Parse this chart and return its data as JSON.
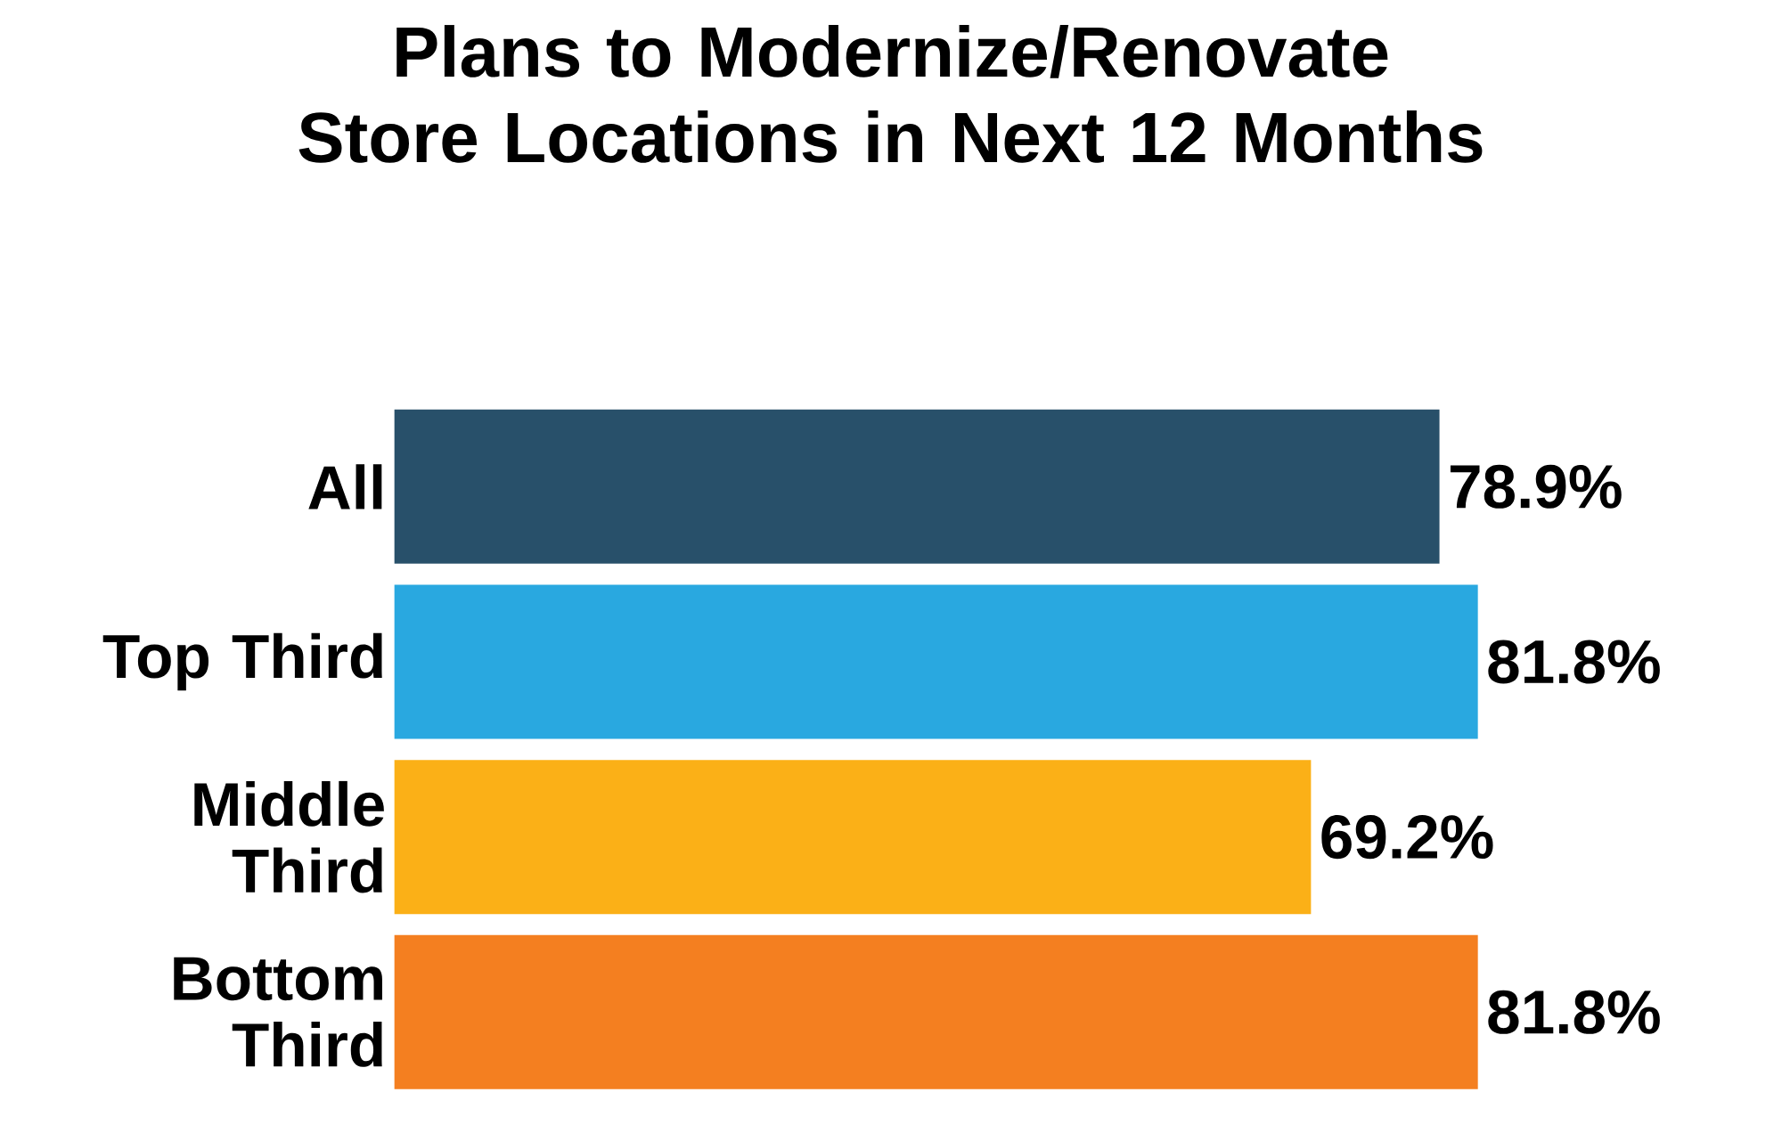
{
  "chart_data": {
    "type": "bar",
    "orientation": "horizontal",
    "title": "Plans to Modernize/Renovate Store Locations in Next 12 Months",
    "categories": [
      "All",
      "Top Third",
      "Middle Third",
      "Bottom Third"
    ],
    "values": [
      78.9,
      81.8,
      69.2,
      81.8
    ],
    "colors": [
      "#28506a",
      "#29a8e0",
      "#fbb017",
      "#f47f20"
    ],
    "value_labels": [
      "78.9%",
      "81.8%",
      "69.2%",
      "81.8%"
    ]
  }
}
